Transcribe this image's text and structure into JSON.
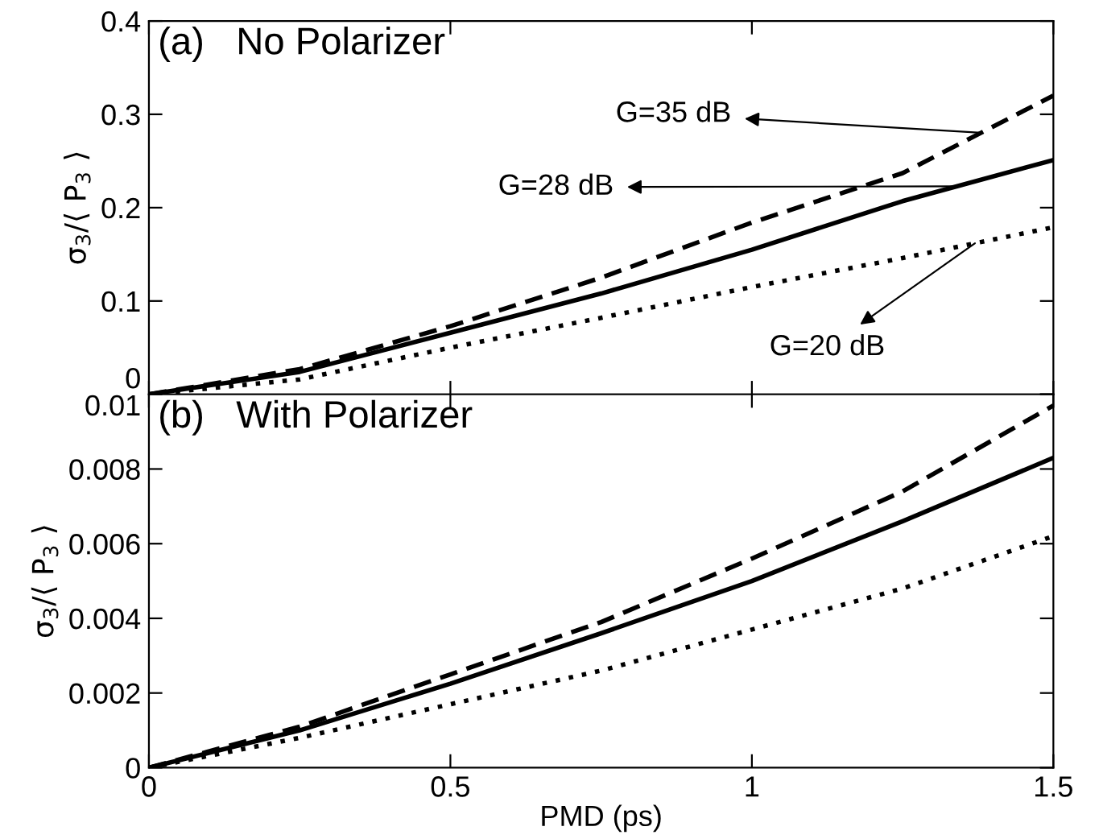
{
  "chart_data": [
    {
      "type": "line",
      "title": "(a)   No Polarizer",
      "ylabel": "σ$_{3}$/⟨ P$_{3}$ ⟩",
      "x": [
        0,
        0.25,
        0.5,
        0.75,
        1.0,
        1.25,
        1.5
      ],
      "xlim": [
        0,
        1.5
      ],
      "xticks": [
        0,
        0.5,
        1,
        1.5
      ],
      "ylim": [
        0,
        0.4
      ],
      "yticks": [
        0,
        0.1,
        0.2,
        0.3,
        0.4
      ],
      "tick_labels": "y",
      "grid": false,
      "legend": "top",
      "series": [
        {
          "name": "G=35 dB",
          "color": "#000000",
          "line_style": "dashed",
          "values": [
            0,
            0.027,
            0.073,
            0.125,
            0.184,
            0.237,
            0.32
          ]
        },
        {
          "name": "G=28 dB",
          "color": "#000000",
          "line_style": "solid",
          "values": [
            0,
            0.024,
            0.066,
            0.108,
            0.155,
            0.207,
            0.251
          ]
        },
        {
          "name": "G=20 dB",
          "color": "#000000",
          "line_style": "dotted",
          "values": [
            0,
            0.016,
            0.05,
            0.082,
            0.115,
            0.146,
            0.179
          ]
        }
      ]
    },
    {
      "type": "line",
      "title": "(b)   With Polarizer",
      "xlabel": "PMD (ps)",
      "ylabel": "σ$_{3}$/⟨ P$_{3}$ ⟩",
      "x": [
        0,
        0.25,
        0.5,
        0.75,
        1.0,
        1.25,
        1.5
      ],
      "xlim": [
        0,
        1.5
      ],
      "xticks": [
        0,
        0.5,
        1,
        1.5
      ],
      "ylim": [
        0,
        0.01
      ],
      "yticks": [
        0,
        0.002,
        0.004,
        0.006,
        0.008,
        0.01
      ],
      "grid": false,
      "series": [
        {
          "color": "#000000",
          "line_style": "dashed",
          "values": [
            0,
            0.0011,
            0.0025,
            0.0039,
            0.0056,
            0.0074,
            0.0097
          ]
        },
        {
          "color": "#000000",
          "line_style": "solid",
          "values": [
            0,
            0.001,
            0.00225,
            0.0036,
            0.005,
            0.0066,
            0.0083
          ]
        },
        {
          "color": "#000000",
          "line_style": "dotted",
          "values": [
            0,
            0.0008,
            0.0017,
            0.0026,
            0.0037,
            0.0048,
            0.0062
          ]
        }
      ]
    }
  ]
}
